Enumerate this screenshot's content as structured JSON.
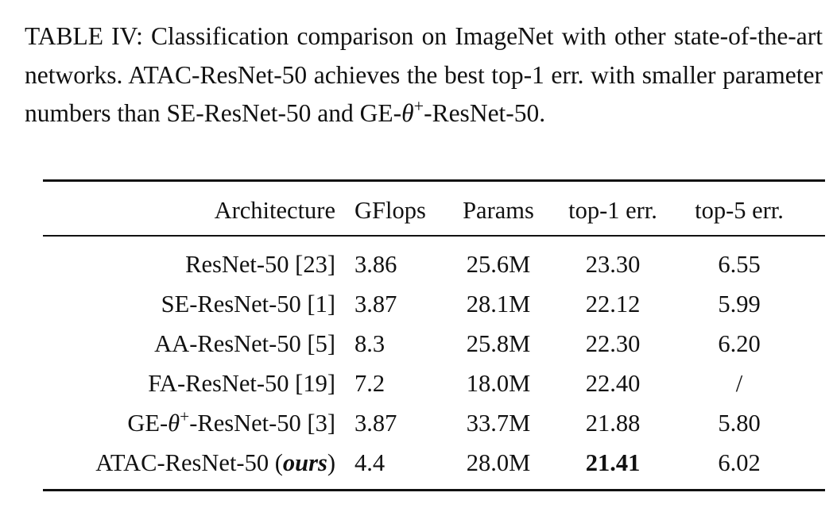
{
  "caption": {
    "label": "TABLE IV:",
    "text_before": "Classification comparison on ImageNet with other state-of-the-art networks. ATAC-ResNet-50 achieves the best top-1 err. with smaller parameter numbers than SE-ResNet-50 and GE-",
    "theta": "θ",
    "theta_sup": "+",
    "text_after": "-ResNet-50."
  },
  "table": {
    "headers": {
      "architecture": "Architecture",
      "gflops": "GFlops",
      "params": "Params",
      "top1": "top-1 err.",
      "top5": "top-5 err."
    },
    "rows": [
      {
        "arch": "ResNet-50 [23]",
        "gflops": "3.86",
        "params": "25.6M",
        "top1": "23.30",
        "top5": "6.55"
      },
      {
        "arch": "SE-ResNet-50 [1]",
        "gflops": "3.87",
        "params": "28.1M",
        "top1": "22.12",
        "top5": "5.99"
      },
      {
        "arch": "AA-ResNet-50 [5]",
        "gflops": "8.3",
        "params": "25.8M",
        "top1": "22.30",
        "top5": "6.20"
      },
      {
        "arch": "FA-ResNet-50 [19]",
        "gflops": "7.2",
        "params": "18.0M",
        "top1": "22.40",
        "top5": "/"
      },
      {
        "arch_prefix": "GE-",
        "arch_theta": "θ",
        "arch_sup": "+",
        "arch_suffix": "-ResNet-50 [3]",
        "gflops": "3.87",
        "params": "33.7M",
        "top1": "21.88",
        "top5": "5.80"
      },
      {
        "arch_prefix": "ATAC-ResNet-50 (",
        "arch_ital": "ours",
        "arch_suffix": ")",
        "gflops": "4.4",
        "params": "28.0M",
        "top1": "21.41",
        "top5": "6.02"
      }
    ]
  }
}
